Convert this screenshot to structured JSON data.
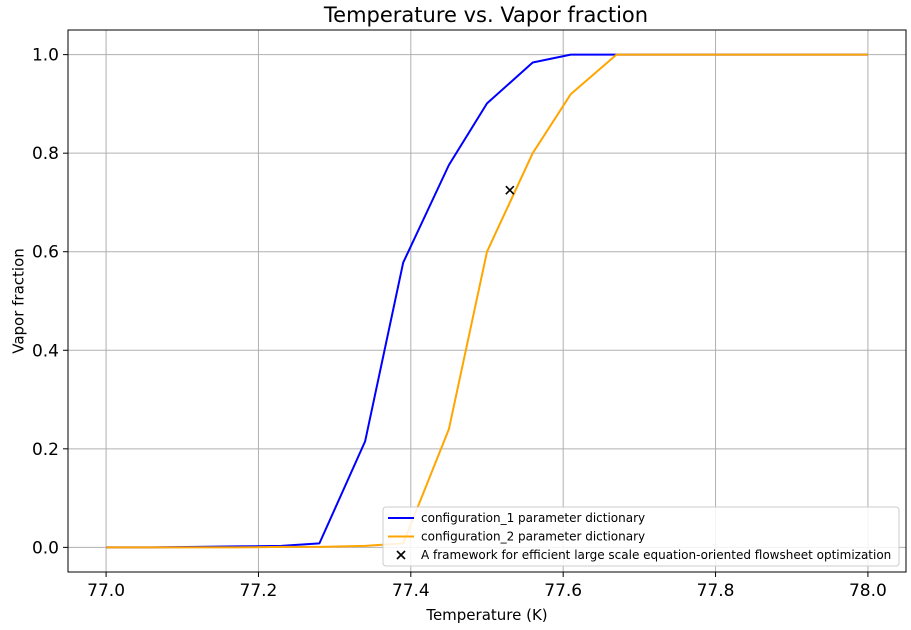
{
  "chart_data": {
    "type": "line",
    "title": "Temperature vs. Vapor fraction",
    "xlabel": "Temperature (K)",
    "ylabel": "Vapor fraction",
    "xlim": [
      76.95,
      78.05
    ],
    "ylim": [
      -0.05,
      1.05
    ],
    "xticks": [
      77.0,
      77.2,
      77.4,
      77.6,
      77.8,
      78.0
    ],
    "xtick_labels": [
      "77.0",
      "77.2",
      "77.4",
      "77.6",
      "77.8",
      "78.0"
    ],
    "yticks": [
      0.0,
      0.2,
      0.4,
      0.6,
      0.8,
      1.0
    ],
    "ytick_labels": [
      "0.0",
      "0.2",
      "0.4",
      "0.6",
      "0.8",
      "1.0"
    ],
    "grid": true,
    "legend_position": "lower-right",
    "series": [
      {
        "name": "configuration_1 parameter dictionary",
        "kind": "line",
        "color": "#0000ff",
        "x": [
          77.0,
          77.06,
          77.12,
          77.17,
          77.23,
          77.28,
          77.34,
          77.39,
          77.45,
          77.5,
          77.56,
          77.61,
          77.67,
          77.72,
          77.78,
          77.83,
          77.89,
          77.94,
          78.0
        ],
        "y": [
          0.0,
          0.0,
          0.001,
          0.002,
          0.003,
          0.008,
          0.215,
          0.578,
          0.776,
          0.901,
          0.984,
          1.0,
          1.0,
          1.0,
          1.0,
          1.0,
          1.0,
          1.0,
          1.0
        ]
      },
      {
        "name": "configuration_2 parameter dictionary",
        "kind": "line",
        "color": "#ffa500",
        "x": [
          77.0,
          77.06,
          77.12,
          77.17,
          77.23,
          77.28,
          77.34,
          77.39,
          77.45,
          77.5,
          77.56,
          77.61,
          77.67,
          77.72,
          77.78,
          77.83,
          77.89,
          77.94,
          78.0
        ],
        "y": [
          0.0,
          0.0,
          0.0,
          0.0,
          0.001,
          0.001,
          0.003,
          0.008,
          0.24,
          0.6,
          0.8,
          0.92,
          1.0,
          1.0,
          1.0,
          1.0,
          1.0,
          1.0,
          1.0
        ]
      },
      {
        "name": "A framework for efficient large scale equation-oriented flowsheet optimization",
        "kind": "scatter",
        "marker": "x",
        "color": "#000000",
        "x": [
          77.53
        ],
        "y": [
          0.725
        ]
      }
    ]
  }
}
